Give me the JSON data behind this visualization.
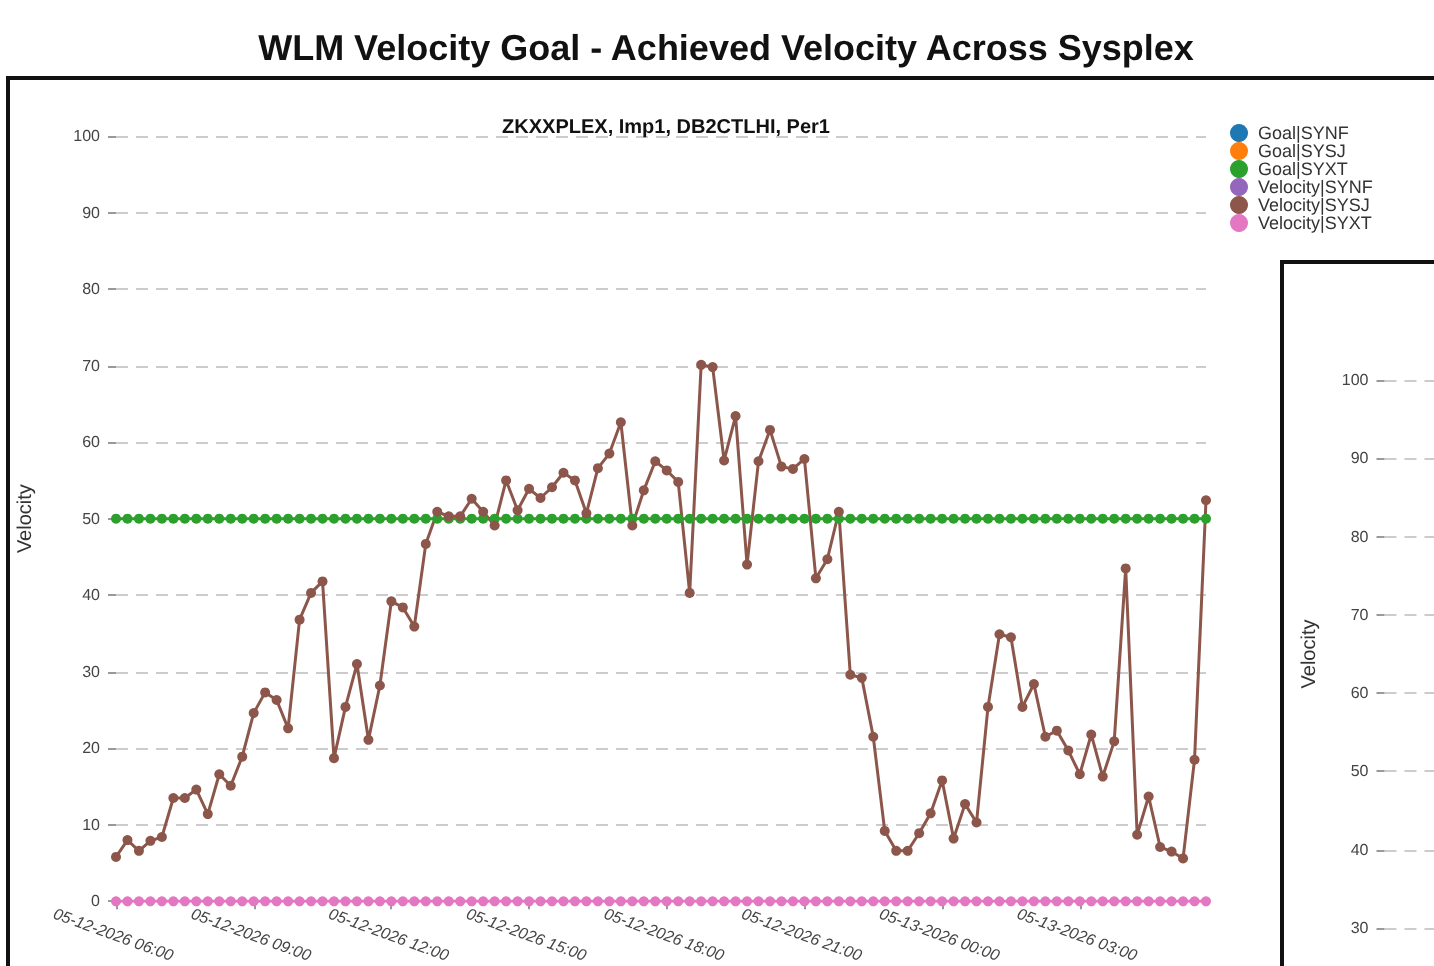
{
  "chart_data": [
    {
      "type": "line",
      "title": "WLM Velocity Goal - Achieved Velocity Across Sysplex",
      "subtitle": "ZKXXPLEX, Imp1, DB2CTLHI, Per1",
      "ylabel": "Velocity",
      "x": [
        "2026-05-12T06:00",
        "2026-05-12T06:15",
        "2026-05-12T06:30",
        "2026-05-12T06:45",
        "2026-05-12T07:00",
        "2026-05-12T07:15",
        "2026-05-12T07:30",
        "2026-05-12T07:45",
        "2026-05-12T08:00",
        "2026-05-12T08:15",
        "2026-05-12T08:30",
        "2026-05-12T08:45",
        "2026-05-12T09:00",
        "2026-05-12T09:15",
        "2026-05-12T09:30",
        "2026-05-12T09:45",
        "2026-05-12T10:00",
        "2026-05-12T10:15",
        "2026-05-12T10:30",
        "2026-05-12T10:45",
        "2026-05-12T11:00",
        "2026-05-12T11:15",
        "2026-05-12T11:30",
        "2026-05-12T11:45",
        "2026-05-12T12:00",
        "2026-05-12T12:15",
        "2026-05-12T12:30",
        "2026-05-12T12:45",
        "2026-05-12T13:00",
        "2026-05-12T13:15",
        "2026-05-12T13:30",
        "2026-05-12T13:45",
        "2026-05-12T14:00",
        "2026-05-12T14:15",
        "2026-05-12T14:30",
        "2026-05-12T14:45",
        "2026-05-12T15:00",
        "2026-05-12T15:15",
        "2026-05-12T15:30",
        "2026-05-12T15:45",
        "2026-05-12T16:00",
        "2026-05-12T16:15",
        "2026-05-12T16:30",
        "2026-05-12T16:45",
        "2026-05-12T17:00",
        "2026-05-12T17:15",
        "2026-05-12T17:30",
        "2026-05-12T17:45",
        "2026-05-12T18:00",
        "2026-05-12T18:15",
        "2026-05-12T18:30",
        "2026-05-12T18:45",
        "2026-05-12T19:00",
        "2026-05-12T19:15",
        "2026-05-12T19:30",
        "2026-05-12T19:45",
        "2026-05-12T20:00",
        "2026-05-12T20:15",
        "2026-05-12T20:30",
        "2026-05-12T20:45",
        "2026-05-12T21:00",
        "2026-05-12T21:15",
        "2026-05-12T21:30",
        "2026-05-12T21:45",
        "2026-05-12T22:00",
        "2026-05-12T22:15",
        "2026-05-12T22:30",
        "2026-05-12T22:45",
        "2026-05-12T23:00",
        "2026-05-12T23:15",
        "2026-05-12T23:30",
        "2026-05-12T23:45",
        "2026-05-13T00:00",
        "2026-05-13T00:15",
        "2026-05-13T00:30",
        "2026-05-13T00:45",
        "2026-05-13T01:00",
        "2026-05-13T01:15",
        "2026-05-13T01:30",
        "2026-05-13T01:45",
        "2026-05-13T02:00",
        "2026-05-13T02:15",
        "2026-05-13T02:30",
        "2026-05-13T02:45",
        "2026-05-13T03:00",
        "2026-05-13T03:15",
        "2026-05-13T03:30",
        "2026-05-13T03:45",
        "2026-05-13T04:00",
        "2026-05-13T04:15",
        "2026-05-13T04:30",
        "2026-05-13T04:45",
        "2026-05-13T05:00",
        "2026-05-13T05:15",
        "2026-05-13T05:30",
        "2026-05-13T05:45"
      ],
      "xlim": [
        "2026-05-12T06:00",
        "2026-05-13T05:45"
      ],
      "xticks": [
        {
          "value": "2026-05-12T06:00",
          "label": "05-12-2026 06:00"
        },
        {
          "value": "2026-05-12T09:00",
          "label": "05-12-2026 09:00"
        },
        {
          "value": "2026-05-12T12:00",
          "label": "05-12-2026 12:00"
        },
        {
          "value": "2026-05-12T15:00",
          "label": "05-12-2026 15:00"
        },
        {
          "value": "2026-05-12T18:00",
          "label": "05-12-2026 18:00"
        },
        {
          "value": "2026-05-12T21:00",
          "label": "05-12-2026 21:00"
        },
        {
          "value": "2026-05-13T00:00",
          "label": "05-13-2026 00:00"
        },
        {
          "value": "2026-05-13T03:00",
          "label": "05-13-2026 03:00"
        }
      ],
      "ylim": [
        0,
        100
      ],
      "yticks": [
        0,
        10,
        20,
        30,
        40,
        50,
        60,
        70,
        80,
        90,
        100
      ],
      "grid": "y",
      "legend": "top right",
      "marker": "circle",
      "line_style": "solid",
      "series": [
        {
          "name": "Goal|SYNF",
          "color": "#1f77b4",
          "values": [
            null,
            null,
            null,
            null,
            null,
            null,
            null,
            null,
            null,
            null,
            null,
            null,
            null,
            null,
            null,
            null,
            null,
            null,
            null,
            null,
            null,
            null,
            null,
            null,
            null,
            null,
            null,
            null,
            null,
            null,
            null,
            null,
            null,
            null,
            null,
            null,
            null,
            null,
            null,
            null,
            null,
            null,
            null,
            null,
            null,
            null,
            null,
            null,
            null,
            null,
            null,
            null,
            null,
            null,
            null,
            null,
            null,
            null,
            null,
            null,
            null,
            null,
            null,
            null,
            null,
            null,
            null,
            null,
            null,
            null,
            null,
            null,
            null,
            null,
            null,
            null,
            null,
            null,
            null,
            null,
            null,
            null,
            null,
            null,
            null,
            null,
            null,
            null,
            null,
            null,
            null,
            null,
            null,
            null,
            null,
            null
          ]
        },
        {
          "name": "Goal|SYSJ",
          "color": "#ff7f0e",
          "values": [
            null,
            null,
            null,
            null,
            null,
            null,
            null,
            null,
            null,
            null,
            null,
            null,
            null,
            null,
            null,
            null,
            null,
            null,
            null,
            null,
            null,
            null,
            null,
            null,
            null,
            null,
            null,
            null,
            null,
            null,
            null,
            null,
            null,
            null,
            null,
            null,
            null,
            null,
            null,
            null,
            null,
            null,
            null,
            null,
            null,
            null,
            null,
            null,
            null,
            null,
            null,
            null,
            null,
            null,
            null,
            null,
            null,
            null,
            null,
            null,
            null,
            null,
            null,
            null,
            null,
            null,
            null,
            null,
            null,
            null,
            null,
            null,
            null,
            null,
            null,
            null,
            null,
            null,
            null,
            null,
            null,
            null,
            null,
            null,
            null,
            null,
            null,
            null,
            null,
            null,
            null,
            null,
            null,
            null,
            null,
            null
          ]
        },
        {
          "name": "Goal|SYXT",
          "color": "#2ca02c",
          "values": [
            50,
            50,
            50,
            50,
            50,
            50,
            50,
            50,
            50,
            50,
            50,
            50,
            50,
            50,
            50,
            50,
            50,
            50,
            50,
            50,
            50,
            50,
            50,
            50,
            50,
            50,
            50,
            50,
            50,
            50,
            50,
            50,
            50,
            50,
            50,
            50,
            50,
            50,
            50,
            50,
            50,
            50,
            50,
            50,
            50,
            50,
            50,
            50,
            50,
            50,
            50,
            50,
            50,
            50,
            50,
            50,
            50,
            50,
            50,
            50,
            50,
            50,
            50,
            50,
            50,
            50,
            50,
            50,
            50,
            50,
            50,
            50,
            50,
            50,
            50,
            50,
            50,
            50,
            50,
            50,
            50,
            50,
            50,
            50,
            50,
            50,
            50,
            50,
            50,
            50,
            50,
            50,
            50,
            50,
            50,
            50
          ]
        },
        {
          "name": "Velocity|SYNF",
          "color": "#9467bd",
          "values": [
            null,
            null,
            null,
            null,
            null,
            null,
            null,
            null,
            null,
            null,
            null,
            null,
            null,
            null,
            null,
            null,
            null,
            null,
            null,
            null,
            null,
            null,
            null,
            null,
            null,
            null,
            null,
            null,
            null,
            null,
            null,
            null,
            null,
            null,
            null,
            null,
            null,
            null,
            null,
            null,
            null,
            null,
            null,
            null,
            null,
            null,
            null,
            null,
            null,
            null,
            null,
            null,
            null,
            null,
            null,
            null,
            null,
            null,
            null,
            null,
            null,
            null,
            null,
            null,
            null,
            null,
            null,
            null,
            null,
            null,
            null,
            null,
            null,
            null,
            null,
            null,
            null,
            null,
            null,
            null,
            null,
            null,
            null,
            null,
            null,
            null,
            null,
            null,
            null,
            null,
            null,
            null,
            null,
            null,
            null,
            null
          ]
        },
        {
          "name": "Velocity|SYSJ",
          "color": "#8c564b",
          "values": [
            5.8,
            8.0,
            6.6,
            7.9,
            8.4,
            13.5,
            13.5,
            14.6,
            11.4,
            16.6,
            15.1,
            18.9,
            24.6,
            27.3,
            26.3,
            22.6,
            36.8,
            40.3,
            41.8,
            18.7,
            25.4,
            31.0,
            21.1,
            28.2,
            39.2,
            38.4,
            35.9,
            46.7,
            50.9,
            50.3,
            50.3,
            52.6,
            50.9,
            49.1,
            55.0,
            51.1,
            53.9,
            52.7,
            54.1,
            56.0,
            55.0,
            50.7,
            56.6,
            58.5,
            62.6,
            49.1,
            53.7,
            57.5,
            56.3,
            54.8,
            40.3,
            70.1,
            69.8,
            57.6,
            63.4,
            44.0,
            57.5,
            61.6,
            56.8,
            56.5,
            57.8,
            42.2,
            44.7,
            50.9,
            29.6,
            29.2,
            21.5,
            9.2,
            6.6,
            6.6,
            8.9,
            11.5,
            15.8,
            8.2,
            12.7,
            10.3,
            25.4,
            34.9,
            34.5,
            25.4,
            28.4,
            21.5,
            22.3,
            19.7,
            16.6,
            21.8,
            16.3,
            20.9,
            43.5,
            8.7,
            13.7,
            7.1,
            6.5,
            5.6,
            18.5,
            52.4
          ]
        },
        {
          "name": "Velocity|SYXT",
          "color": "#e377c2",
          "values": [
            0,
            0,
            0,
            0,
            0,
            0,
            0,
            0,
            0,
            0,
            0,
            0,
            0,
            0,
            0,
            0,
            0,
            0,
            0,
            0,
            0,
            0,
            0,
            0,
            0,
            0,
            0,
            0,
            0,
            0,
            0,
            0,
            0,
            0,
            0,
            0,
            0,
            0,
            0,
            0,
            0,
            0,
            0,
            0,
            0,
            0,
            0,
            0,
            0,
            0,
            0,
            0,
            0,
            0,
            0,
            0,
            0,
            0,
            0,
            0,
            0,
            0,
            0,
            0,
            0,
            0,
            0,
            0,
            0,
            0,
            0,
            0,
            0,
            0,
            0,
            0,
            0,
            0,
            0,
            0,
            0,
            0,
            0,
            0,
            0,
            0,
            0,
            0,
            0,
            0,
            0,
            0,
            0,
            0,
            0,
            0
          ]
        }
      ]
    },
    {
      "type": "line",
      "categories": [
        null,
        null
      ],
      "values": [
        null,
        null
      ],
      "ylabel": "Velocity",
      "ylim": [
        30,
        100
      ],
      "yticks": [
        30,
        40,
        50,
        60,
        70,
        80,
        90,
        100
      ],
      "grid": "y",
      "tick_labels": "y"
    }
  ]
}
